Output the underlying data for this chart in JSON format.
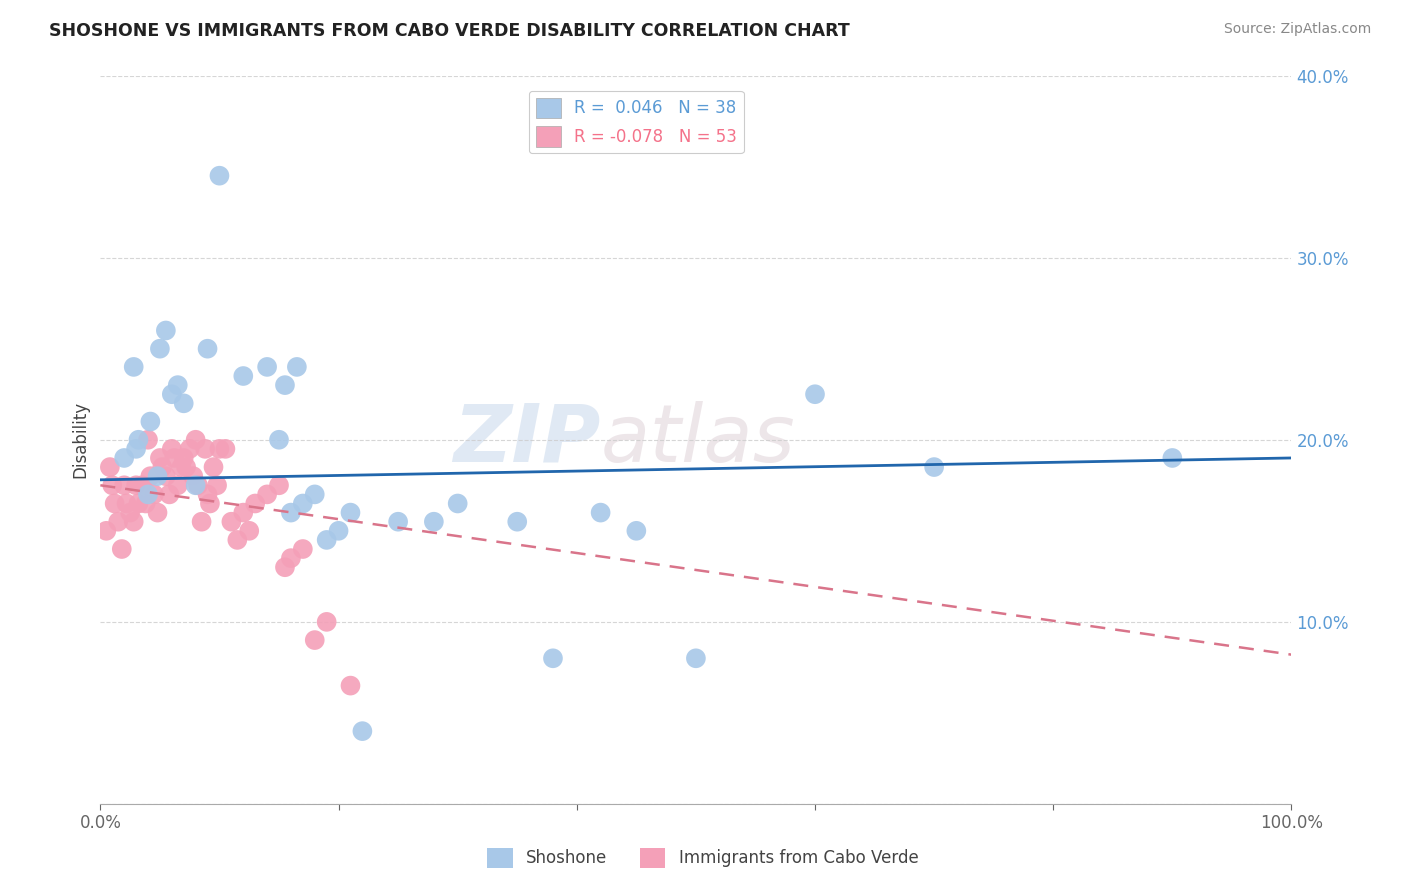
{
  "title": "SHOSHONE VS IMMIGRANTS FROM CABO VERDE DISABILITY CORRELATION CHART",
  "source": "Source: ZipAtlas.com",
  "ylabel": "Disability",
  "xlim": [
    0,
    1.0
  ],
  "ylim": [
    0,
    0.4
  ],
  "xticks": [
    0.0,
    0.2,
    0.4,
    0.6,
    0.8,
    1.0
  ],
  "yticks": [
    0.0,
    0.1,
    0.2,
    0.3,
    0.4
  ],
  "xticklabels": [
    "0.0%",
    "",
    "",
    "",
    "",
    "100.0%"
  ],
  "yticklabels": [
    "",
    "10.0%",
    "20.0%",
    "30.0%",
    "40.0%"
  ],
  "legend_entries": [
    {
      "label": "R =  0.046   N = 38",
      "color": "#5b9bd5"
    },
    {
      "label": "R = -0.078   N = 53",
      "color": "#f4728a"
    }
  ],
  "shoshone_color": "#a8c8e8",
  "cabo_verde_color": "#f4a0b8",
  "shoshone_trend_color": "#2166ac",
  "cabo_verde_trend_color": "#d9748a",
  "background_color": "#ffffff",
  "watermark_text": "ZIP",
  "watermark_text2": "atlas",
  "shoshone_x": [
    0.02,
    0.028,
    0.03,
    0.032,
    0.04,
    0.042,
    0.048,
    0.05,
    0.055,
    0.06,
    0.065,
    0.07,
    0.08,
    0.09,
    0.1,
    0.12,
    0.14,
    0.15,
    0.155,
    0.16,
    0.165,
    0.17,
    0.18,
    0.19,
    0.2,
    0.21,
    0.22,
    0.25,
    0.28,
    0.3,
    0.35,
    0.38,
    0.42,
    0.45,
    0.5,
    0.6,
    0.7,
    0.9
  ],
  "shoshone_y": [
    0.19,
    0.24,
    0.195,
    0.2,
    0.17,
    0.21,
    0.18,
    0.25,
    0.26,
    0.225,
    0.23,
    0.22,
    0.175,
    0.25,
    0.345,
    0.235,
    0.24,
    0.2,
    0.23,
    0.16,
    0.24,
    0.165,
    0.17,
    0.145,
    0.15,
    0.16,
    0.04,
    0.155,
    0.155,
    0.165,
    0.155,
    0.08,
    0.16,
    0.15,
    0.08,
    0.225,
    0.185,
    0.19
  ],
  "cabo_verde_x": [
    0.005,
    0.008,
    0.01,
    0.012,
    0.015,
    0.018,
    0.02,
    0.022,
    0.025,
    0.028,
    0.03,
    0.032,
    0.035,
    0.038,
    0.04,
    0.042,
    0.045,
    0.048,
    0.05,
    0.052,
    0.055,
    0.058,
    0.06,
    0.062,
    0.065,
    0.068,
    0.07,
    0.072,
    0.075,
    0.078,
    0.08,
    0.082,
    0.085,
    0.088,
    0.09,
    0.092,
    0.095,
    0.098,
    0.1,
    0.105,
    0.11,
    0.115,
    0.12,
    0.125,
    0.13,
    0.14,
    0.15,
    0.155,
    0.16,
    0.17,
    0.18,
    0.19,
    0.21
  ],
  "cabo_verde_y": [
    0.15,
    0.185,
    0.175,
    0.165,
    0.155,
    0.14,
    0.175,
    0.165,
    0.16,
    0.155,
    0.175,
    0.165,
    0.175,
    0.165,
    0.2,
    0.18,
    0.17,
    0.16,
    0.19,
    0.185,
    0.18,
    0.17,
    0.195,
    0.19,
    0.175,
    0.185,
    0.19,
    0.185,
    0.195,
    0.18,
    0.2,
    0.175,
    0.155,
    0.195,
    0.17,
    0.165,
    0.185,
    0.175,
    0.195,
    0.195,
    0.155,
    0.145,
    0.16,
    0.15,
    0.165,
    0.17,
    0.175,
    0.13,
    0.135,
    0.14,
    0.09,
    0.1,
    0.065
  ],
  "sho_trend_x0": 0.0,
  "sho_trend_y0": 0.178,
  "sho_trend_x1": 1.0,
  "sho_trend_y1": 0.19,
  "cabo_trend_x0": 0.0,
  "cabo_trend_y0": 0.175,
  "cabo_trend_x1": 1.0,
  "cabo_trend_y1": 0.082
}
